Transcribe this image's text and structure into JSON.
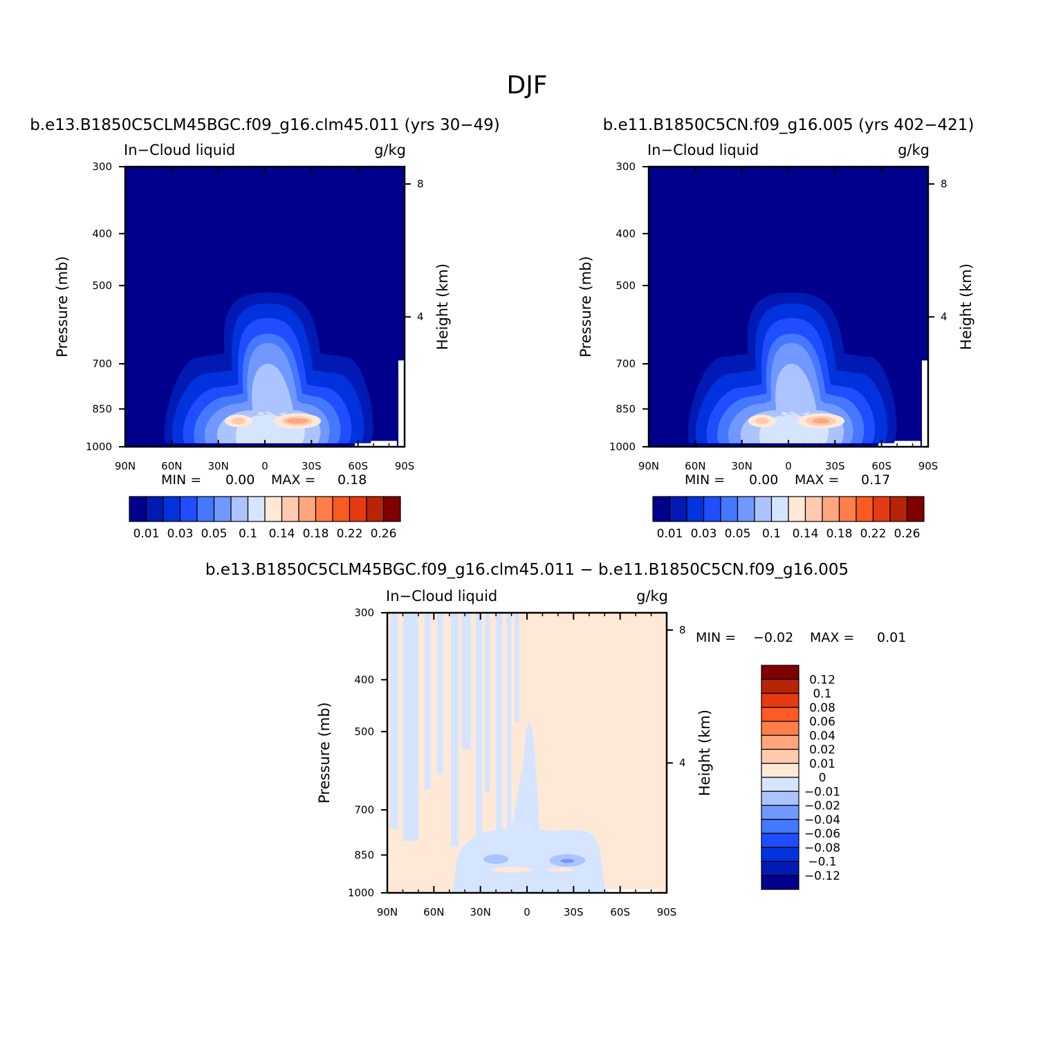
{
  "figure": {
    "title": "DJF",
    "diff_title": "b.e13.B1850C5CLM45BGC.f09_g16.clm45.011 − b.e11.B1850C5CN.f09_g16.005"
  },
  "panels": [
    {
      "case_title": "b.e13.B1850C5CLM45BGC.f09_g16.clm45.011 (yrs 30−49)",
      "variable": "In−Cloud liquid",
      "units": "g/kg",
      "min_label": "MIN =",
      "min_value": "0.00",
      "max_label": "MAX =",
      "max_value": "0.18"
    },
    {
      "case_title": "b.e11.B1850C5CN.f09_g16.005 (yrs 402−421)",
      "variable": "In−Cloud liquid",
      "units": "g/kg",
      "min_label": "MIN =",
      "min_value": "0.00",
      "max_label": "MAX =",
      "max_value": "0.17"
    },
    {
      "case_title": "",
      "variable": "In−Cloud liquid",
      "units": "g/kg",
      "min_label": "MIN =",
      "min_value": "−0.02",
      "max_label": "MAX =",
      "max_value": "0.01"
    }
  ],
  "chart_data": {
    "type": "heatmap",
    "xlabel": "",
    "ylabel": "Pressure (mb)",
    "ylabel_right": "Height (km)",
    "x_ticks": [
      "90N",
      "60N",
      "30N",
      "0",
      "30S",
      "60S",
      "90S"
    ],
    "x_tick_values": [
      90,
      60,
      30,
      0,
      -30,
      -60,
      -90
    ],
    "y_ticks": [
      "300",
      "400",
      "500",
      "700",
      "850",
      "1000"
    ],
    "y_tick_values": [
      300,
      400,
      500,
      700,
      850,
      1000
    ],
    "y_right_ticks": [
      "8",
      "4"
    ],
    "y_right_tick_values": [
      8,
      4
    ],
    "xlim": [
      90,
      -90
    ],
    "ylim": [
      1000,
      300
    ],
    "y_scale": "log",
    "colorbar_mean": {
      "labels": [
        "0.01",
        "0.03",
        "0.05",
        "0.1",
        "0.14",
        "0.18",
        "0.22",
        "0.26"
      ],
      "colors": [
        "#00008c",
        "#001ab3",
        "#0033dd",
        "#1f4dff",
        "#4478ff",
        "#7098ff",
        "#abc4ff",
        "#d6e5ff",
        "#ffe8d6",
        "#ffcab0",
        "#ffa67e",
        "#ff7e4a",
        "#f85a1f",
        "#e63a12",
        "#b82408",
        "#800000"
      ]
    },
    "colorbar_diff": {
      "labels": [
        "0.12",
        "0.1",
        "0.08",
        "0.06",
        "0.04",
        "0.02",
        "0.01",
        "0",
        "−0.01",
        "−0.02",
        "−0.04",
        "−0.06",
        "−0.08",
        "−0.1",
        "−0.12"
      ],
      "colors": [
        "#800000",
        "#b82408",
        "#e63a12",
        "#ff5a24",
        "#ff7e4a",
        "#ffa67e",
        "#ffcab0",
        "#ffe8d6",
        "#d6e5ff",
        "#abc4ff",
        "#7098ff",
        "#4478ff",
        "#1f4dff",
        "#0033dd",
        "#001ab3",
        "#00008c"
      ]
    }
  }
}
